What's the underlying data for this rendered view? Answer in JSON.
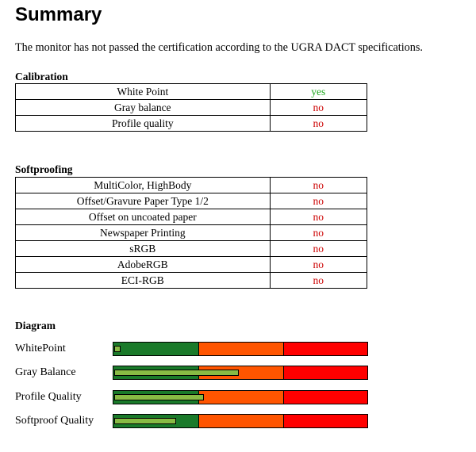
{
  "title": "Summary",
  "intro": "The monitor has not passed the certification according to the UGRA DACT specifications.",
  "calibration": {
    "heading": "Calibration",
    "rows": [
      {
        "label": "White Point",
        "status": "yes"
      },
      {
        "label": "Gray balance",
        "status": "no"
      },
      {
        "label": "Profile quality",
        "status": "no"
      }
    ]
  },
  "softproofing": {
    "heading": "Softproofing",
    "rows": [
      {
        "label": "MultiColor, HighBody",
        "status": "no"
      },
      {
        "label": "Offset/Gravure Paper Type 1/2",
        "status": "no"
      },
      {
        "label": "Offset on uncoated paper",
        "status": "no"
      },
      {
        "label": "Newspaper Printing",
        "status": "no"
      },
      {
        "label": "sRGB",
        "status": "no"
      },
      {
        "label": "AdobeRGB",
        "status": "no"
      },
      {
        "label": "ECI-RGB",
        "status": "no"
      }
    ]
  },
  "diagram": {
    "heading": "Diagram",
    "zone_colors": [
      "#1a7a2a",
      "#ff5500",
      "#ff0000"
    ],
    "bar_color": "#88bb44",
    "rows": [
      {
        "label": "WhitePoint",
        "value": 0.02
      },
      {
        "label": "Gray Balance",
        "value": 0.49
      },
      {
        "label": "Profile Quality",
        "value": 0.35
      },
      {
        "label": "Softproof Quality",
        "value": 0.24
      }
    ]
  },
  "status_colors": {
    "yes": "#22aa22",
    "no": "#cc0000"
  }
}
